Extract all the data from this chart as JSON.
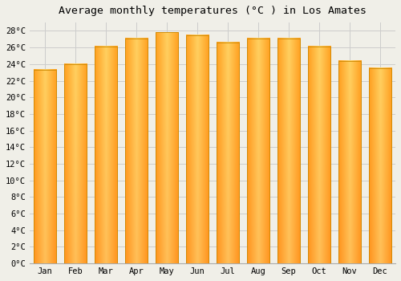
{
  "months": [
    "Jan",
    "Feb",
    "Mar",
    "Apr",
    "May",
    "Jun",
    "Jul",
    "Aug",
    "Sep",
    "Oct",
    "Nov",
    "Dec"
  ],
  "temperatures": [
    23.3,
    24.0,
    26.1,
    27.1,
    27.8,
    27.5,
    26.6,
    27.1,
    27.1,
    26.1,
    24.4,
    23.5
  ],
  "bar_color_center": "#FFD060",
  "bar_color_edge": "#FFA020",
  "bar_outline_color": "#CC8800",
  "title": "Average monthly temperatures (°C ) in Los Amates",
  "ylim": [
    0,
    29
  ],
  "yticks": [
    0,
    2,
    4,
    6,
    8,
    10,
    12,
    14,
    16,
    18,
    20,
    22,
    24,
    26,
    28
  ],
  "ytick_labels": [
    "0°C",
    "2°C",
    "4°C",
    "6°C",
    "8°C",
    "10°C",
    "12°C",
    "14°C",
    "16°C",
    "18°C",
    "20°C",
    "22°C",
    "24°C",
    "26°C",
    "28°C"
  ],
  "background_color": "#F0EFE8",
  "grid_color": "#CCCCCC",
  "title_fontsize": 9.5,
  "tick_fontsize": 7.5,
  "bar_width": 0.75
}
